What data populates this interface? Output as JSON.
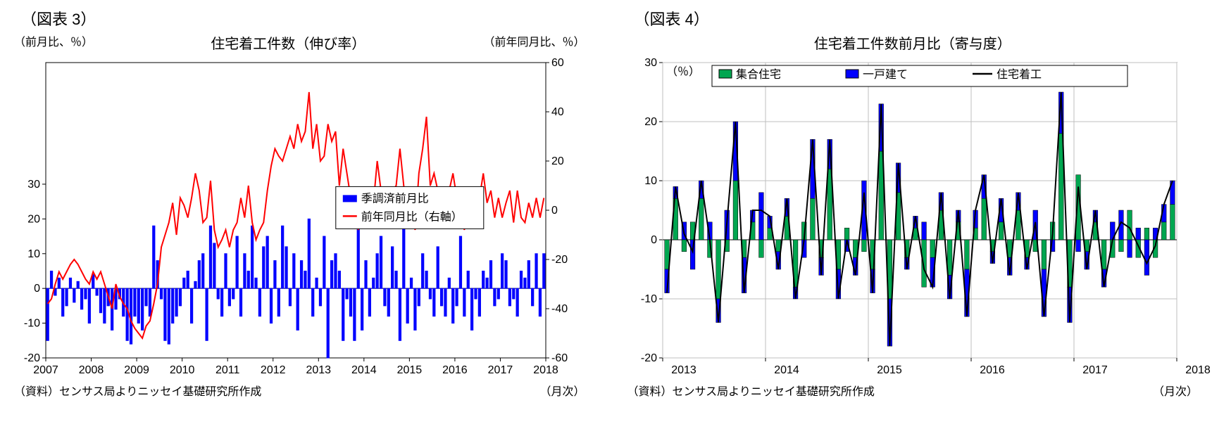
{
  "chart3": {
    "figure_label": "（図表 3）",
    "title": "住宅着工件数（伸び率）",
    "left_axis_label": "（前月比、％）",
    "right_axis_label": "（前年同月比、％）",
    "source": "（資料）センサス局よりニッセイ基礎研究所作成",
    "x_unit": "（月次）",
    "bar_color": "#0000ff",
    "line_color": "#ff0000",
    "grid_color": "#bfbfbf",
    "axis_color": "#000000",
    "background": "#ffffff",
    "x_ticks": [
      "2007",
      "2008",
      "2009",
      "2010",
      "2011",
      "2012",
      "2013",
      "2014",
      "2015",
      "2016",
      "2017",
      "2018"
    ],
    "left_y_ticks": [
      -20,
      -10,
      0,
      10,
      20,
      30
    ],
    "left_ylim": [
      -20,
      65
    ],
    "right_y_ticks": [
      -60,
      -40,
      -20,
      0,
      20,
      40,
      60
    ],
    "right_ylim": [
      -60,
      60
    ],
    "legend": [
      {
        "label": "季調済前月比",
        "color": "#0000ff",
        "type": "bar"
      },
      {
        "label": "前年同月比（右軸）",
        "color": "#ff0000",
        "type": "line"
      }
    ],
    "bars": [
      -15,
      5,
      -2,
      3,
      -8,
      -5,
      3,
      -4,
      2,
      -6,
      -3,
      -10,
      4,
      -2,
      -7,
      -10,
      -5,
      -12,
      -6,
      -3,
      -8,
      -15,
      -16,
      -8,
      -10,
      -12,
      -5,
      -8,
      18,
      8,
      -3,
      -15,
      -16,
      -10,
      -8,
      -5,
      3,
      5,
      -10,
      2,
      8,
      10,
      -15,
      18,
      13,
      -3,
      -8,
      10,
      -5,
      -3,
      15,
      -8,
      10,
      5,
      18,
      3,
      -8,
      12,
      15,
      -10,
      8,
      -8,
      18,
      12,
      -5,
      10,
      -12,
      8,
      5,
      20,
      -8,
      3,
      -5,
      15,
      -20,
      8,
      10,
      5,
      -15,
      -3,
      -8,
      -15,
      17,
      -12,
      8,
      -8,
      3,
      10,
      15,
      -5,
      -8,
      12,
      5,
      -15,
      25,
      -10,
      3,
      -12,
      -5,
      10,
      5,
      -3,
      -8,
      12,
      -5,
      -8,
      3,
      -10,
      -5,
      15,
      -8,
      5,
      -12,
      -3,
      -8,
      5,
      3,
      8,
      -5,
      -3,
      10,
      8,
      -5,
      -3,
      -8,
      5,
      3,
      8,
      -5,
      10,
      -8,
      10
    ],
    "line": [
      -38,
      -36,
      -30,
      -25,
      -28,
      -25,
      -22,
      -20,
      -22,
      -25,
      -28,
      -30,
      -25,
      -28,
      -25,
      -30,
      -35,
      -40,
      -30,
      -35,
      -38,
      -40,
      -45,
      -48,
      -50,
      -52,
      -47,
      -45,
      -38,
      -30,
      -15,
      -10,
      -5,
      3,
      -10,
      5,
      2,
      -3,
      5,
      15,
      8,
      -5,
      -3,
      12,
      -8,
      -15,
      -12,
      -8,
      -15,
      -8,
      -5,
      5,
      -3,
      10,
      -5,
      -12,
      -8,
      -5,
      8,
      18,
      25,
      22,
      20,
      25,
      30,
      25,
      35,
      28,
      32,
      48,
      25,
      35,
      20,
      22,
      35,
      28,
      32,
      10,
      25,
      15,
      5,
      -3,
      -8,
      8,
      -3,
      5,
      3,
      20,
      8,
      -5,
      -3,
      8,
      10,
      25,
      10,
      -5,
      3,
      -8,
      15,
      25,
      38,
      10,
      15,
      8,
      -3,
      3,
      8,
      15,
      5,
      3,
      -8,
      5,
      3,
      -5,
      5,
      15,
      3,
      8,
      -3,
      5,
      -3,
      3,
      8,
      -5,
      8,
      -3,
      -5,
      3,
      -3,
      5,
      -3,
      5
    ]
  },
  "chart4": {
    "figure_label": "（図表 4）",
    "title": "住宅着工件数前月比（寄与度）",
    "y_axis_label": "（％）",
    "source": "（資料）センサス局よりニッセイ基礎研究所作成",
    "x_unit": "（月次）",
    "bar1_color": "#00a650",
    "bar1_border": "#000000",
    "bar2_color": "#0000ff",
    "bar2_border": "#000000",
    "line_color": "#000000",
    "grid_color": "#bfbfbf",
    "axis_color": "#000000",
    "background": "#ffffff",
    "x_ticks": [
      "2013",
      "2014",
      "2015",
      "2016",
      "2017",
      "2018"
    ],
    "y_ticks": [
      -20,
      -10,
      0,
      10,
      20,
      30
    ],
    "ylim": [
      -20,
      30
    ],
    "legend": [
      {
        "label": "集合住宅",
        "color": "#00a650",
        "type": "bar"
      },
      {
        "label": "一戸建て",
        "color": "#0000ff",
        "type": "bar"
      },
      {
        "label": "住宅着工",
        "color": "#000000",
        "type": "line"
      }
    ],
    "bars_green": [
      -5,
      7,
      -2,
      3,
      7,
      -3,
      -10,
      -2,
      10,
      -3,
      3,
      -3,
      2,
      -2,
      4,
      -8,
      3,
      7,
      -3,
      12,
      -5,
      2,
      -3,
      -2,
      -5,
      15,
      -10,
      8,
      -3,
      2,
      -8,
      -3,
      5,
      -6,
      3,
      -5,
      2,
      7,
      -2,
      3,
      -3,
      5,
      -3,
      -2,
      -5,
      3,
      18,
      -8,
      11,
      -2,
      3,
      -5,
      -3,
      -2,
      5,
      -3,
      2,
      -3,
      3,
      6
    ],
    "bars_blue": [
      -4,
      2,
      3,
      -5,
      3,
      3,
      -4,
      5,
      10,
      -6,
      2,
      8,
      2,
      -3,
      3,
      -2,
      -3,
      10,
      -3,
      5,
      -5,
      -2,
      -3,
      10,
      -4,
      8,
      -8,
      5,
      -2,
      2,
      3,
      -5,
      3,
      -4,
      2,
      -8,
      3,
      4,
      -2,
      4,
      -3,
      3,
      -2,
      5,
      -8,
      -2,
      7,
      -6,
      -2,
      -3,
      2,
      -3,
      3,
      5,
      -3,
      2,
      -6,
      2,
      3,
      4
    ],
    "line": [
      -9,
      9,
      1,
      -2,
      10,
      0,
      -14,
      3,
      20,
      -9,
      5,
      5,
      4,
      -5,
      7,
      -10,
      0,
      17,
      -6,
      17,
      -10,
      0,
      -6,
      8,
      -9,
      23,
      -18,
      13,
      -5,
      4,
      -5,
      -8,
      8,
      -10,
      5,
      -13,
      5,
      11,
      -4,
      7,
      -6,
      8,
      -5,
      3,
      -13,
      1,
      25,
      -14,
      9,
      -5,
      5,
      -8,
      0,
      3,
      2,
      -1,
      -4,
      -1,
      6,
      10
    ]
  }
}
